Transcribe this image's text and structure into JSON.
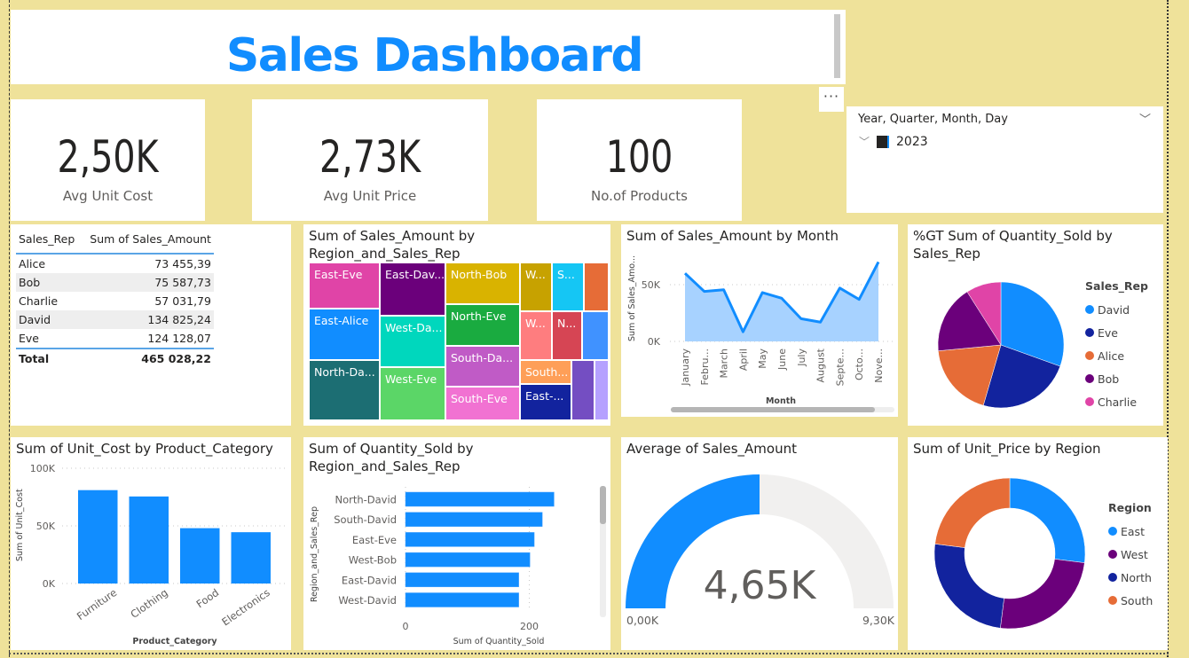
{
  "header": {
    "title": "Sales Dashboard",
    "more_options": "···"
  },
  "kpis": [
    {
      "value": "2,50K",
      "label": "Avg Unit Cost"
    },
    {
      "value": "2,73K",
      "label": "Avg Unit Price"
    },
    {
      "value": "100",
      "label": "No.of Products"
    }
  ],
  "slicer": {
    "title": "Year, Quarter, Month, Day",
    "items": [
      {
        "label": "2023",
        "checked": true
      }
    ]
  },
  "table": {
    "columns": [
      "Sales_Rep",
      "Sum of Sales_Amount"
    ],
    "rows": [
      {
        "rep": "Alice",
        "amount": "73 455,39"
      },
      {
        "rep": "Bob",
        "amount": "75 587,73"
      },
      {
        "rep": "Charlie",
        "amount": "57 031,79"
      },
      {
        "rep": "David",
        "amount": "134 825,24"
      },
      {
        "rep": "Eve",
        "amount": "124 128,07"
      }
    ],
    "total": {
      "label": "Total",
      "amount": "465 028,22"
    }
  },
  "treemap": {
    "title": "Sum of Sales_Amount by Region_and_Sales_Rep",
    "cells": [
      {
        "label": "East-Eve",
        "color": "#e044a7"
      },
      {
        "label": "East-Alice",
        "color": "#118dff"
      },
      {
        "label": "North-Da...",
        "color": "#1c6e73"
      },
      {
        "label": "East-Dav...",
        "color": "#6b007b"
      },
      {
        "label": "West-Da...",
        "color": "#00d7bd"
      },
      {
        "label": "West-Eve",
        "color": "#5bd667"
      },
      {
        "label": "North-Bob",
        "color": "#d9b300"
      },
      {
        "label": "North-Eve",
        "color": "#1aab40"
      },
      {
        "label": "South-Da...",
        "color": "#c05bc6"
      },
      {
        "label": "South-Eve",
        "color": "#f172d2"
      },
      {
        "label": "W...",
        "color": "#c7a200"
      },
      {
        "label": "S...",
        "color": "#15c6f4"
      },
      {
        "label": "",
        "color": "#e66c37"
      },
      {
        "label": "W...",
        "color": "#fe7d7f"
      },
      {
        "label": "N...",
        "color": "#d64554"
      },
      {
        "label": "",
        "color": "#4092ff"
      },
      {
        "label": "South...",
        "color": "#fe9f58"
      },
      {
        "label": "East-...",
        "color": "#12239e"
      },
      {
        "label": "",
        "color": "#744ec2"
      },
      {
        "label": "",
        "color": "#b5a1ff"
      }
    ]
  },
  "chart_data": [
    {
      "id": "line",
      "type": "area",
      "title": "Sum of Sales_Amount by Month",
      "xlabel": "Month",
      "ylabel": "Sum of Sales_Amo...",
      "categories": [
        "January",
        "Febru...",
        "March",
        "April",
        "May",
        "June",
        "July",
        "August",
        "Septe...",
        "Octo...",
        "Nove..."
      ],
      "values": [
        60000,
        44000,
        45500,
        8500,
        43000,
        38000,
        20000,
        17000,
        47000,
        37000,
        70000
      ],
      "ylim": [
        0,
        75000
      ],
      "yticks": [
        {
          "v": 0,
          "label": "0K"
        },
        {
          "v": 50000,
          "label": "50K"
        }
      ],
      "color": "#118dff",
      "fill": "#a7d2ff",
      "grid": true
    },
    {
      "id": "pie",
      "type": "pie",
      "title": "%GT Sum of Quantity_Sold by Sales_Rep",
      "legend_title": "Sales_Rep",
      "legend_position": "right",
      "slices": [
        {
          "label": "David",
          "value": 30.5,
          "color": "#118dff"
        },
        {
          "label": "Eve",
          "value": 24,
          "color": "#12239e"
        },
        {
          "label": "Alice",
          "value": 19,
          "color": "#e66c37"
        },
        {
          "label": "Bob",
          "value": 17.5,
          "color": "#6b007b"
        },
        {
          "label": "Charlie",
          "value": 9,
          "color": "#e044a7"
        }
      ]
    },
    {
      "id": "bar",
      "type": "bar",
      "title": "Sum of Unit_Cost by Product_Category",
      "xlabel": "Product_Category",
      "ylabel": "Sum of Unit_Cost",
      "categories": [
        "Furniture",
        "Clothing",
        "Food",
        "Electronics"
      ],
      "values": [
        81000,
        75500,
        48000,
        44500
      ],
      "ylim": [
        0,
        100000
      ],
      "yticks": [
        {
          "v": 0,
          "label": "0K"
        },
        {
          "v": 50000,
          "label": "50K"
        },
        {
          "v": 100000,
          "label": "100K"
        }
      ],
      "color": "#118dff",
      "grid": true
    },
    {
      "id": "hbar",
      "type": "bar",
      "orientation": "horizontal",
      "title": "Sum of Quantity_Sold by Region_and_Sales_Rep",
      "xlabel": "Sum of Quantity_Sold",
      "ylabel": "Region_and_Sales_Rep",
      "categories": [
        "North-David",
        "South-David",
        "East-Eve",
        "West-Bob",
        "East-David",
        "West-David"
      ],
      "values": [
        240,
        221,
        208,
        201,
        183,
        183
      ],
      "xlim": [
        0,
        270
      ],
      "xticks": [
        {
          "v": 0,
          "label": "0"
        },
        {
          "v": 200,
          "label": "200"
        }
      ],
      "color": "#118dff",
      "grid": true
    },
    {
      "id": "gauge",
      "type": "gauge",
      "title": "Average of Sales_Amount",
      "value": 4650,
      "value_label": "4,65K",
      "min": 0,
      "min_label": "0,00K",
      "max": 9300,
      "max_label": "9,30K",
      "color": "#118dff",
      "track": "#f1f0ef"
    },
    {
      "id": "donut",
      "type": "pie",
      "subtype": "donut",
      "title": "Sum of Unit_Price by Region",
      "legend_title": "Region",
      "legend_position": "right",
      "slices": [
        {
          "label": "East",
          "value": 27,
          "color": "#118dff"
        },
        {
          "label": "West",
          "value": 25,
          "color": "#6b007b"
        },
        {
          "label": "North",
          "value": 25,
          "color": "#12239e"
        },
        {
          "label": "South",
          "value": 23,
          "color": "#e66c37"
        }
      ]
    }
  ]
}
